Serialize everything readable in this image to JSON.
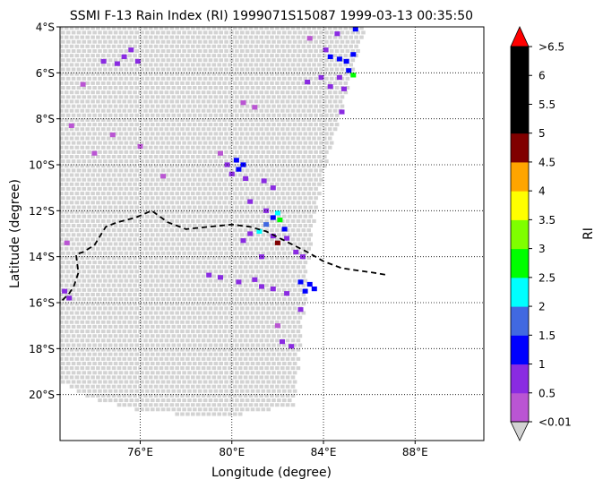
{
  "chart_data": {
    "type": "heatmap",
    "title": "SSMI F-13 Rain Index (RI) 1999071S15087 1999-03-13 00:35:50",
    "xlabel": "Longitude (degree)",
    "ylabel": "Latitude (degree)",
    "xlim": [
      72.5,
      91.0
    ],
    "ylim": [
      -22.0,
      -4.0
    ],
    "grid": true,
    "x_ticks": [
      {
        "value": 76,
        "label": "76°E"
      },
      {
        "value": 80,
        "label": "80°E"
      },
      {
        "value": 84,
        "label": "84°E"
      },
      {
        "value": 88,
        "label": "88°E"
      }
    ],
    "y_ticks": [
      {
        "value": -4,
        "label": "4°S"
      },
      {
        "value": -6,
        "label": "6°S"
      },
      {
        "value": -8,
        "label": "8°S"
      },
      {
        "value": -10,
        "label": "10°S"
      },
      {
        "value": -12,
        "label": "12°S"
      },
      {
        "value": -14,
        "label": "14°S"
      },
      {
        "value": -16,
        "label": "16°S"
      },
      {
        "value": -18,
        "label": "18°S"
      },
      {
        "value": -20,
        "label": "20°S"
      }
    ],
    "no_rain_color": "#d3d3d3",
    "colorbar": {
      "label": "RI",
      "levels": [
        0.01,
        0.5,
        1,
        1.5,
        2,
        2.5,
        3,
        3.5,
        4,
        4.5,
        5,
        5.5,
        6,
        6.5
      ],
      "tick_labels": [
        "<0.01",
        "0.5",
        "1",
        "1.5",
        "2",
        "2.5",
        "3",
        "3.5",
        "4",
        "4.5",
        "5",
        "5.5",
        "6",
        ">6.5"
      ],
      "colors": [
        "#ba55d3",
        "#8a2be2",
        "#0000ff",
        "#4169e1",
        "#00ffff",
        "#00ff00",
        "#7fff00",
        "#ffff00",
        "#ffa500",
        "#800000",
        "#000000",
        "#000000",
        "#000000"
      ],
      "over_color": "#ff0000",
      "under_color": "#d3d3d3"
    },
    "track": {
      "style": "dashed",
      "color": "#000000",
      "lon": [
        72.6,
        72.9,
        73.1,
        73.3,
        73.2,
        73.5,
        74.0,
        74.5,
        75.0,
        75.8,
        76.5,
        77.2,
        78.0,
        79.0,
        80.0,
        80.8,
        81.5,
        82.5,
        83.3,
        84.0,
        84.8,
        85.5,
        86.2,
        86.8
      ],
      "lat": [
        -15.9,
        -15.6,
        -15.3,
        -14.7,
        -13.9,
        -13.8,
        -13.5,
        -12.7,
        -12.5,
        -12.3,
        -12.0,
        -12.5,
        -12.8,
        -12.7,
        -12.6,
        -12.7,
        -12.9,
        -13.4,
        -13.8,
        -14.2,
        -14.5,
        -14.6,
        -14.7,
        -14.8
      ]
    },
    "swath": {
      "top_lat": -4.0,
      "top_edge_lon": 85.9,
      "right_edge": [
        [
          85.9,
          -4.0
        ],
        [
          85.0,
          -7.0
        ],
        [
          84.1,
          -10.0
        ],
        [
          83.5,
          -13.0
        ],
        [
          83.2,
          -16.0
        ],
        [
          82.9,
          -19.0
        ],
        [
          82.7,
          -20.5
        ]
      ],
      "bottom_edge": [
        [
          72.5,
          -19.5
        ],
        [
          74.0,
          -20.2
        ],
        [
          76.0,
          -20.7
        ],
        [
          78.0,
          -20.9
        ],
        [
          80.0,
          -20.9
        ],
        [
          81.5,
          -20.7
        ],
        [
          82.7,
          -20.5
        ]
      ]
    },
    "rain_cells": [
      {
        "lon": 75.0,
        "lat": -5.6,
        "ri": 0.5
      },
      {
        "lon": 75.3,
        "lat": -5.3,
        "ri": 0.5
      },
      {
        "lon": 75.6,
        "lat": -5.0,
        "ri": 0.5
      },
      {
        "lon": 75.9,
        "lat": -5.5,
        "ri": 0.5
      },
      {
        "lon": 74.4,
        "lat": -5.5,
        "ri": 0.5
      },
      {
        "lon": 73.5,
        "lat": -6.5,
        "ri": 0.3
      },
      {
        "lon": 74.8,
        "lat": -8.7,
        "ri": 0.4
      },
      {
        "lon": 73.0,
        "lat": -8.3,
        "ri": 0.3
      },
      {
        "lon": 74.0,
        "lat": -9.5,
        "ri": 0.4
      },
      {
        "lon": 76.0,
        "lat": -9.2,
        "ri": 0.3
      },
      {
        "lon": 77.0,
        "lat": -10.5,
        "ri": 0.3
      },
      {
        "lon": 80.5,
        "lat": -7.3,
        "ri": 0.4
      },
      {
        "lon": 81.0,
        "lat": -7.5,
        "ri": 0.4
      },
      {
        "lon": 79.5,
        "lat": -9.5,
        "ri": 0.4
      },
      {
        "lon": 79.8,
        "lat": -10.0,
        "ri": 0.5
      },
      {
        "lon": 80.0,
        "lat": -10.4,
        "ri": 0.6
      },
      {
        "lon": 80.3,
        "lat": -10.2,
        "ri": 1.0
      },
      {
        "lon": 80.5,
        "lat": -10.0,
        "ri": 1.2
      },
      {
        "lon": 80.2,
        "lat": -9.8,
        "ri": 1.0
      },
      {
        "lon": 80.6,
        "lat": -10.6,
        "ri": 0.6
      },
      {
        "lon": 81.4,
        "lat": -10.7,
        "ri": 0.6
      },
      {
        "lon": 81.8,
        "lat": -11.0,
        "ri": 0.5
      },
      {
        "lon": 80.8,
        "lat": -11.6,
        "ri": 0.5
      },
      {
        "lon": 81.5,
        "lat": -12.0,
        "ri": 0.8
      },
      {
        "lon": 81.8,
        "lat": -12.3,
        "ri": 1.2
      },
      {
        "lon": 82.0,
        "lat": -12.1,
        "ri": 2.2
      },
      {
        "lon": 82.1,
        "lat": -12.4,
        "ri": 2.7
      },
      {
        "lon": 81.5,
        "lat": -12.6,
        "ri": 1.5
      },
      {
        "lon": 81.2,
        "lat": -12.9,
        "ri": 2.1
      },
      {
        "lon": 82.3,
        "lat": -12.8,
        "ri": 1.2
      },
      {
        "lon": 82.4,
        "lat": -13.2,
        "ri": 0.8
      },
      {
        "lon": 81.8,
        "lat": -13.1,
        "ri": 0.9
      },
      {
        "lon": 82.0,
        "lat": -13.4,
        "ri": 4.8
      },
      {
        "lon": 80.8,
        "lat": -13.0,
        "ri": 0.6
      },
      {
        "lon": 80.5,
        "lat": -13.3,
        "ri": 0.5
      },
      {
        "lon": 81.3,
        "lat": -14.0,
        "ri": 0.5
      },
      {
        "lon": 82.8,
        "lat": -13.8,
        "ri": 0.6
      },
      {
        "lon": 83.1,
        "lat": -14.0,
        "ri": 0.6
      },
      {
        "lon": 81.0,
        "lat": -15.0,
        "ri": 0.6
      },
      {
        "lon": 80.3,
        "lat": -15.1,
        "ri": 0.5
      },
      {
        "lon": 79.5,
        "lat": -14.9,
        "ri": 0.5
      },
      {
        "lon": 79.0,
        "lat": -14.8,
        "ri": 0.5
      },
      {
        "lon": 81.3,
        "lat": -15.3,
        "ri": 0.8
      },
      {
        "lon": 81.8,
        "lat": -15.4,
        "ri": 0.6
      },
      {
        "lon": 82.4,
        "lat": -15.6,
        "ri": 0.8
      },
      {
        "lon": 83.0,
        "lat": -15.1,
        "ri": 1.2
      },
      {
        "lon": 83.4,
        "lat": -15.2,
        "ri": 1.4
      },
      {
        "lon": 83.2,
        "lat": -15.5,
        "ri": 1.3
      },
      {
        "lon": 83.6,
        "lat": -15.4,
        "ri": 1.1
      },
      {
        "lon": 83.0,
        "lat": -16.3,
        "ri": 0.6
      },
      {
        "lon": 82.0,
        "lat": -17.0,
        "ri": 0.4
      },
      {
        "lon": 82.2,
        "lat": -17.7,
        "ri": 0.5
      },
      {
        "lon": 82.6,
        "lat": -17.9,
        "ri": 0.5
      },
      {
        "lon": 83.4,
        "lat": -4.5,
        "ri": 0.4
      },
      {
        "lon": 84.6,
        "lat": -4.3,
        "ri": 0.6
      },
      {
        "lon": 85.4,
        "lat": -4.1,
        "ri": 1.2
      },
      {
        "lon": 84.1,
        "lat": -5.0,
        "ri": 0.8
      },
      {
        "lon": 84.3,
        "lat": -5.3,
        "ri": 1.1
      },
      {
        "lon": 84.7,
        "lat": -5.4,
        "ri": 1.4
      },
      {
        "lon": 85.0,
        "lat": -5.5,
        "ri": 1.2
      },
      {
        "lon": 85.3,
        "lat": -5.2,
        "ri": 1.0
      },
      {
        "lon": 85.1,
        "lat": -5.9,
        "ri": 1.3
      },
      {
        "lon": 85.3,
        "lat": -6.1,
        "ri": 2.7
      },
      {
        "lon": 84.7,
        "lat": -6.2,
        "ri": 0.9
      },
      {
        "lon": 83.9,
        "lat": -6.2,
        "ri": 0.8
      },
      {
        "lon": 83.3,
        "lat": -6.4,
        "ri": 0.6
      },
      {
        "lon": 84.3,
        "lat": -6.6,
        "ri": 0.6
      },
      {
        "lon": 84.9,
        "lat": -6.7,
        "ri": 0.5
      },
      {
        "lon": 84.8,
        "lat": -7.7,
        "ri": 0.6
      },
      {
        "lon": 72.7,
        "lat": -15.5,
        "ri": 0.6
      },
      {
        "lon": 72.9,
        "lat": -15.8,
        "ri": 0.6
      },
      {
        "lon": 72.8,
        "lat": -13.4,
        "ri": 0.4
      }
    ]
  }
}
